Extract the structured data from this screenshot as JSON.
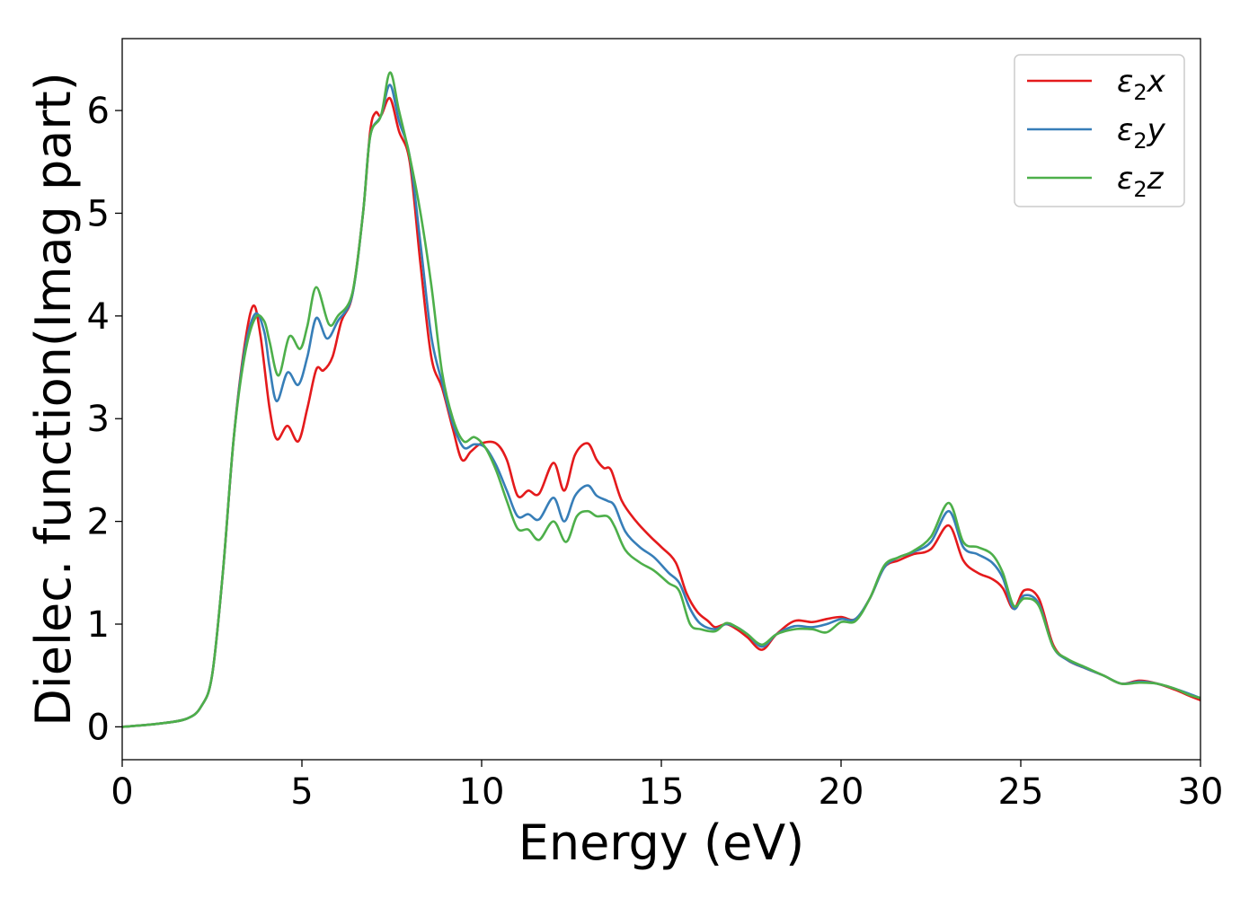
{
  "chart_data": {
    "type": "line",
    "title": "",
    "xlabel": "Energy (eV)",
    "ylabel": "Dielec. function(Imag part)",
    "xlim": [
      0,
      30
    ],
    "ylim": [
      -0.32,
      6.7
    ],
    "xticks": [
      0,
      5,
      10,
      15,
      20,
      25,
      30
    ],
    "yticks": [
      0,
      1,
      2,
      3,
      4,
      5,
      6
    ],
    "grid": false,
    "legend_position": "top-right",
    "series": [
      {
        "name": "ε2x",
        "legend_base": "ε",
        "legend_sub": "2",
        "legend_suffix": "x",
        "color": "#e41a1c",
        "points": [
          [
            0,
            0.0
          ],
          [
            1,
            0.03
          ],
          [
            1.8,
            0.08
          ],
          [
            2.2,
            0.2
          ],
          [
            2.5,
            0.5
          ],
          [
            2.8,
            1.5
          ],
          [
            3.1,
            2.8
          ],
          [
            3.4,
            3.7
          ],
          [
            3.65,
            4.1
          ],
          [
            3.85,
            3.8
          ],
          [
            4.1,
            3.1
          ],
          [
            4.3,
            2.8
          ],
          [
            4.6,
            2.93
          ],
          [
            4.9,
            2.78
          ],
          [
            5.15,
            3.1
          ],
          [
            5.4,
            3.48
          ],
          [
            5.6,
            3.47
          ],
          [
            5.85,
            3.6
          ],
          [
            6.1,
            3.95
          ],
          [
            6.4,
            4.2
          ],
          [
            6.7,
            5.0
          ],
          [
            6.9,
            5.8
          ],
          [
            7.05,
            5.98
          ],
          [
            7.2,
            5.95
          ],
          [
            7.45,
            6.12
          ],
          [
            7.7,
            5.8
          ],
          [
            8.0,
            5.5
          ],
          [
            8.3,
            4.5
          ],
          [
            8.6,
            3.6
          ],
          [
            8.9,
            3.3
          ],
          [
            9.2,
            2.9
          ],
          [
            9.45,
            2.6
          ],
          [
            9.7,
            2.68
          ],
          [
            10.0,
            2.76
          ],
          [
            10.4,
            2.76
          ],
          [
            10.7,
            2.6
          ],
          [
            11.0,
            2.25
          ],
          [
            11.3,
            2.3
          ],
          [
            11.6,
            2.27
          ],
          [
            12.0,
            2.57
          ],
          [
            12.3,
            2.3
          ],
          [
            12.6,
            2.65
          ],
          [
            12.95,
            2.76
          ],
          [
            13.2,
            2.6
          ],
          [
            13.4,
            2.52
          ],
          [
            13.6,
            2.5
          ],
          [
            13.9,
            2.2
          ],
          [
            14.3,
            2.0
          ],
          [
            14.7,
            1.85
          ],
          [
            15.0,
            1.75
          ],
          [
            15.4,
            1.6
          ],
          [
            15.7,
            1.3
          ],
          [
            16.0,
            1.12
          ],
          [
            16.3,
            1.03
          ],
          [
            16.5,
            0.97
          ],
          [
            16.8,
            1.0
          ],
          [
            17.1,
            0.95
          ],
          [
            17.4,
            0.87
          ],
          [
            17.8,
            0.75
          ],
          [
            18.2,
            0.9
          ],
          [
            18.7,
            1.03
          ],
          [
            19.2,
            1.02
          ],
          [
            19.6,
            1.05
          ],
          [
            20.0,
            1.07
          ],
          [
            20.4,
            1.05
          ],
          [
            20.8,
            1.25
          ],
          [
            21.2,
            1.55
          ],
          [
            21.6,
            1.62
          ],
          [
            22.0,
            1.68
          ],
          [
            22.5,
            1.73
          ],
          [
            23.0,
            1.96
          ],
          [
            23.4,
            1.62
          ],
          [
            23.8,
            1.5
          ],
          [
            24.2,
            1.44
          ],
          [
            24.5,
            1.35
          ],
          [
            24.8,
            1.15
          ],
          [
            25.1,
            1.33
          ],
          [
            25.5,
            1.25
          ],
          [
            25.9,
            0.8
          ],
          [
            26.3,
            0.65
          ],
          [
            26.8,
            0.57
          ],
          [
            27.3,
            0.5
          ],
          [
            27.8,
            0.42
          ],
          [
            28.3,
            0.45
          ],
          [
            28.8,
            0.42
          ],
          [
            29.3,
            0.36
          ],
          [
            29.7,
            0.3
          ],
          [
            30,
            0.26
          ]
        ]
      },
      {
        "name": "ε2y",
        "legend_base": "ε",
        "legend_sub": "2",
        "legend_suffix": "y",
        "color": "#377eb8",
        "points": [
          [
            0,
            0.0
          ],
          [
            1,
            0.03
          ],
          [
            1.8,
            0.08
          ],
          [
            2.2,
            0.2
          ],
          [
            2.5,
            0.5
          ],
          [
            2.8,
            1.5
          ],
          [
            3.1,
            2.8
          ],
          [
            3.4,
            3.65
          ],
          [
            3.7,
            4.02
          ],
          [
            3.95,
            3.85
          ],
          [
            4.1,
            3.5
          ],
          [
            4.3,
            3.17
          ],
          [
            4.6,
            3.45
          ],
          [
            4.9,
            3.33
          ],
          [
            5.15,
            3.6
          ],
          [
            5.4,
            3.98
          ],
          [
            5.7,
            3.78
          ],
          [
            6.0,
            3.95
          ],
          [
            6.4,
            4.2
          ],
          [
            6.7,
            5.0
          ],
          [
            6.9,
            5.75
          ],
          [
            7.2,
            5.95
          ],
          [
            7.45,
            6.25
          ],
          [
            7.7,
            5.9
          ],
          [
            8.0,
            5.55
          ],
          [
            8.3,
            4.7
          ],
          [
            8.6,
            3.8
          ],
          [
            8.9,
            3.35
          ],
          [
            9.2,
            2.95
          ],
          [
            9.5,
            2.72
          ],
          [
            9.8,
            2.75
          ],
          [
            10.1,
            2.72
          ],
          [
            10.4,
            2.55
          ],
          [
            10.7,
            2.3
          ],
          [
            11.0,
            2.05
          ],
          [
            11.3,
            2.07
          ],
          [
            11.6,
            2.02
          ],
          [
            12.0,
            2.23
          ],
          [
            12.3,
            2.0
          ],
          [
            12.6,
            2.25
          ],
          [
            12.95,
            2.35
          ],
          [
            13.2,
            2.25
          ],
          [
            13.5,
            2.2
          ],
          [
            13.7,
            2.15
          ],
          [
            14.0,
            1.9
          ],
          [
            14.4,
            1.75
          ],
          [
            14.8,
            1.65
          ],
          [
            15.2,
            1.5
          ],
          [
            15.5,
            1.4
          ],
          [
            15.8,
            1.15
          ],
          [
            16.1,
            1.0
          ],
          [
            16.5,
            0.95
          ],
          [
            16.8,
            1.0
          ],
          [
            17.1,
            0.97
          ],
          [
            17.4,
            0.9
          ],
          [
            17.8,
            0.78
          ],
          [
            18.2,
            0.9
          ],
          [
            18.7,
            0.98
          ],
          [
            19.2,
            0.97
          ],
          [
            19.6,
            1.0
          ],
          [
            20.0,
            1.05
          ],
          [
            20.4,
            1.05
          ],
          [
            20.8,
            1.25
          ],
          [
            21.2,
            1.55
          ],
          [
            21.6,
            1.65
          ],
          [
            22.0,
            1.7
          ],
          [
            22.5,
            1.8
          ],
          [
            23.0,
            2.1
          ],
          [
            23.4,
            1.75
          ],
          [
            23.8,
            1.68
          ],
          [
            24.2,
            1.6
          ],
          [
            24.5,
            1.45
          ],
          [
            24.8,
            1.15
          ],
          [
            25.1,
            1.28
          ],
          [
            25.5,
            1.2
          ],
          [
            25.9,
            0.78
          ],
          [
            26.3,
            0.65
          ],
          [
            26.8,
            0.57
          ],
          [
            27.3,
            0.5
          ],
          [
            27.8,
            0.42
          ],
          [
            28.3,
            0.44
          ],
          [
            28.8,
            0.42
          ],
          [
            29.3,
            0.37
          ],
          [
            29.7,
            0.32
          ],
          [
            30,
            0.28
          ]
        ]
      },
      {
        "name": "ε2z",
        "legend_base": "ε",
        "legend_sub": "2",
        "legend_suffix": "z",
        "color": "#4daf4a",
        "points": [
          [
            0,
            0.0
          ],
          [
            1,
            0.03
          ],
          [
            1.8,
            0.08
          ],
          [
            2.2,
            0.2
          ],
          [
            2.5,
            0.5
          ],
          [
            2.8,
            1.5
          ],
          [
            3.1,
            2.8
          ],
          [
            3.4,
            3.6
          ],
          [
            3.7,
            3.98
          ],
          [
            3.95,
            3.95
          ],
          [
            4.1,
            3.75
          ],
          [
            4.35,
            3.42
          ],
          [
            4.65,
            3.8
          ],
          [
            4.95,
            3.68
          ],
          [
            5.15,
            3.9
          ],
          [
            5.4,
            4.28
          ],
          [
            5.75,
            3.92
          ],
          [
            6.0,
            4.0
          ],
          [
            6.4,
            4.22
          ],
          [
            6.7,
            5.0
          ],
          [
            6.9,
            5.75
          ],
          [
            7.2,
            5.95
          ],
          [
            7.45,
            6.37
          ],
          [
            7.7,
            6.0
          ],
          [
            8.0,
            5.55
          ],
          [
            8.3,
            5.0
          ],
          [
            8.6,
            4.3
          ],
          [
            8.9,
            3.45
          ],
          [
            9.2,
            3.0
          ],
          [
            9.5,
            2.78
          ],
          [
            9.8,
            2.82
          ],
          [
            10.1,
            2.72
          ],
          [
            10.4,
            2.5
          ],
          [
            10.7,
            2.2
          ],
          [
            11.0,
            1.93
          ],
          [
            11.3,
            1.92
          ],
          [
            11.6,
            1.82
          ],
          [
            12.0,
            2.0
          ],
          [
            12.35,
            1.8
          ],
          [
            12.65,
            2.05
          ],
          [
            12.95,
            2.1
          ],
          [
            13.2,
            2.05
          ],
          [
            13.5,
            2.05
          ],
          [
            13.7,
            1.95
          ],
          [
            14.0,
            1.72
          ],
          [
            14.4,
            1.6
          ],
          [
            14.8,
            1.52
          ],
          [
            15.2,
            1.4
          ],
          [
            15.5,
            1.32
          ],
          [
            15.8,
            1.0
          ],
          [
            16.1,
            0.95
          ],
          [
            16.5,
            0.93
          ],
          [
            16.8,
            1.01
          ],
          [
            17.1,
            0.97
          ],
          [
            17.4,
            0.9
          ],
          [
            17.8,
            0.8
          ],
          [
            18.2,
            0.9
          ],
          [
            18.7,
            0.95
          ],
          [
            19.2,
            0.95
          ],
          [
            19.6,
            0.92
          ],
          [
            20.0,
            1.02
          ],
          [
            20.4,
            1.03
          ],
          [
            20.8,
            1.25
          ],
          [
            21.2,
            1.57
          ],
          [
            21.6,
            1.65
          ],
          [
            22.0,
            1.71
          ],
          [
            22.5,
            1.85
          ],
          [
            23.0,
            2.18
          ],
          [
            23.4,
            1.8
          ],
          [
            23.8,
            1.75
          ],
          [
            24.2,
            1.68
          ],
          [
            24.5,
            1.5
          ],
          [
            24.8,
            1.18
          ],
          [
            25.1,
            1.25
          ],
          [
            25.5,
            1.18
          ],
          [
            25.9,
            0.78
          ],
          [
            26.3,
            0.66
          ],
          [
            26.8,
            0.58
          ],
          [
            27.3,
            0.5
          ],
          [
            27.8,
            0.42
          ],
          [
            28.3,
            0.43
          ],
          [
            28.8,
            0.42
          ],
          [
            29.3,
            0.37
          ],
          [
            29.7,
            0.31
          ],
          [
            30,
            0.28
          ]
        ]
      }
    ]
  }
}
